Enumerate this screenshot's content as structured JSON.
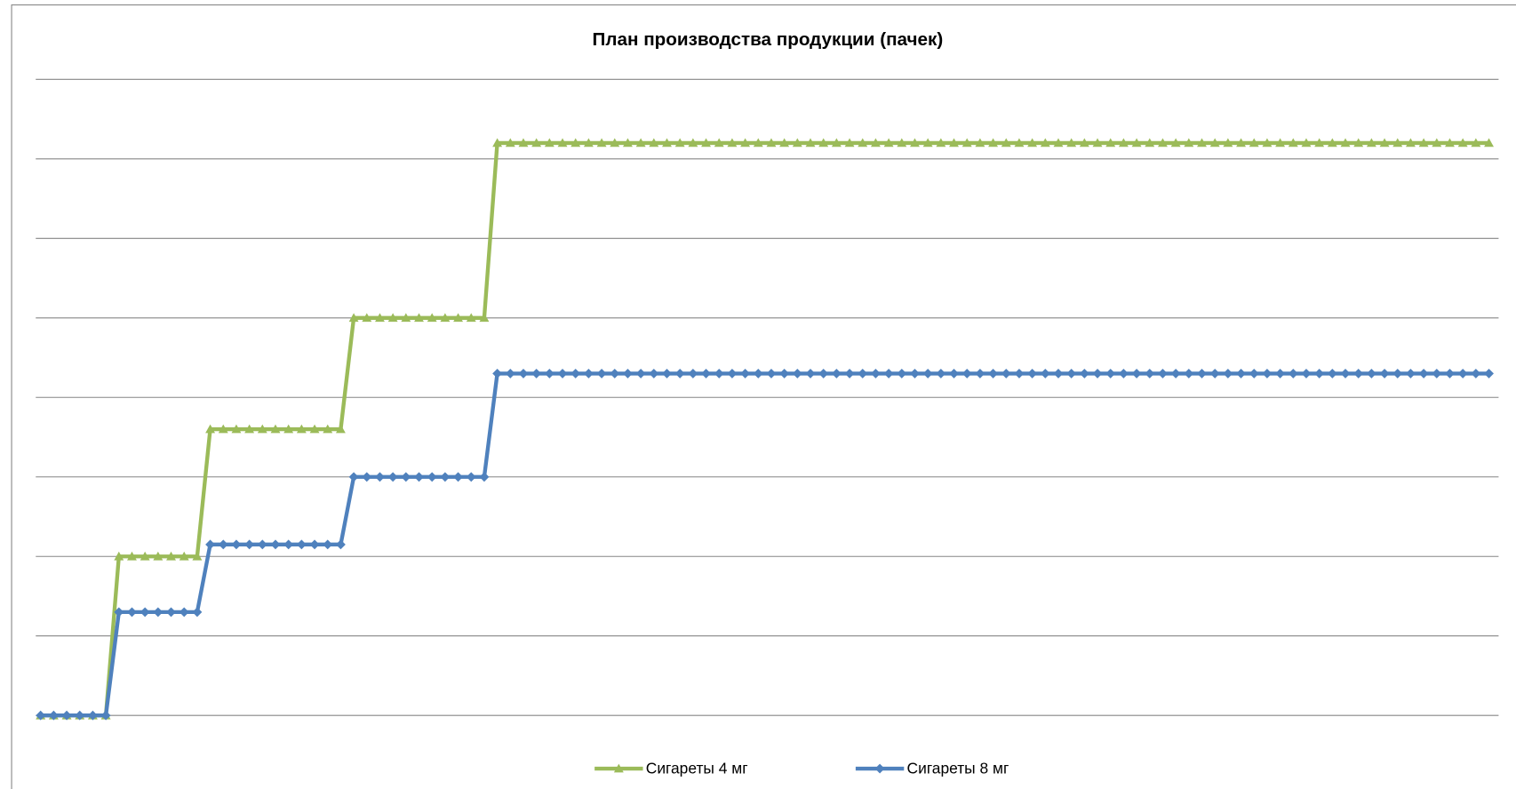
{
  "chart_data": {
    "type": "line",
    "title": "План производства продукции (пачек)",
    "categories": [
      null,
      null,
      null,
      null,
      null,
      null,
      null,
      null,
      null,
      null,
      null,
      null,
      null,
      null,
      null,
      null,
      null,
      null,
      null,
      null,
      null,
      null,
      null,
      null,
      null,
      null,
      null,
      null,
      null,
      null,
      null,
      null,
      null,
      null,
      null,
      null,
      null,
      null,
      null,
      null,
      null,
      null,
      null,
      null,
      null,
      null,
      null,
      null,
      null,
      null,
      null,
      null,
      null,
      null,
      null,
      null,
      null,
      null,
      null,
      null,
      null,
      null,
      null,
      null,
      null,
      null,
      null,
      null,
      null,
      null,
      null,
      null,
      null,
      null,
      null,
      null,
      null,
      null,
      null,
      null,
      null,
      null,
      null,
      null,
      null,
      null,
      null,
      null,
      null,
      null,
      null,
      null,
      null,
      null,
      null,
      null,
      null,
      null,
      null,
      null,
      null,
      null,
      null,
      null,
      null,
      null,
      null,
      null,
      null,
      null,
      null,
      null
    ],
    "series": [
      {
        "name": "Сигареты 4 мг",
        "color": "#9bbb59",
        "marker": "triangle",
        "values": [
          0,
          0,
          0,
          0,
          0,
          0,
          2,
          2,
          2,
          2,
          2,
          2,
          2,
          3.6,
          3.6,
          3.6,
          3.6,
          3.6,
          3.6,
          3.6,
          3.6,
          3.6,
          3.6,
          3.6,
          5,
          5,
          5,
          5,
          5,
          5,
          5,
          5,
          5,
          5,
          5,
          7.2,
          7.2,
          7.2,
          7.2,
          7.2,
          7.2,
          7.2,
          7.2,
          7.2,
          7.2,
          7.2,
          7.2,
          7.2,
          7.2,
          7.2,
          7.2,
          7.2,
          7.2,
          7.2,
          7.2,
          7.2,
          7.2,
          7.2,
          7.2,
          7.2,
          7.2,
          7.2,
          7.2,
          7.2,
          7.2,
          7.2,
          7.2,
          7.2,
          7.2,
          7.2,
          7.2,
          7.2,
          7.2,
          7.2,
          7.2,
          7.2,
          7.2,
          7.2,
          7.2,
          7.2,
          7.2,
          7.2,
          7.2,
          7.2,
          7.2,
          7.2,
          7.2,
          7.2,
          7.2,
          7.2,
          7.2,
          7.2,
          7.2,
          7.2,
          7.2,
          7.2,
          7.2,
          7.2,
          7.2,
          7.2,
          7.2,
          7.2,
          7.2,
          7.2,
          7.2,
          7.2,
          7.2,
          7.2,
          7.2,
          7.2,
          7.2,
          7.2
        ]
      },
      {
        "name": "Сигареты 8 мг",
        "color": "#4f81bd",
        "marker": "diamond",
        "values": [
          0,
          0,
          0,
          0,
          0,
          0,
          1.3,
          1.3,
          1.3,
          1.3,
          1.3,
          1.3,
          1.3,
          2.15,
          2.15,
          2.15,
          2.15,
          2.15,
          2.15,
          2.15,
          2.15,
          2.15,
          2.15,
          2.15,
          3,
          3,
          3,
          3,
          3,
          3,
          3,
          3,
          3,
          3,
          3,
          4.3,
          4.3,
          4.3,
          4.3,
          4.3,
          4.3,
          4.3,
          4.3,
          4.3,
          4.3,
          4.3,
          4.3,
          4.3,
          4.3,
          4.3,
          4.3,
          4.3,
          4.3,
          4.3,
          4.3,
          4.3,
          4.3,
          4.3,
          4.3,
          4.3,
          4.3,
          4.3,
          4.3,
          4.3,
          4.3,
          4.3,
          4.3,
          4.3,
          4.3,
          4.3,
          4.3,
          4.3,
          4.3,
          4.3,
          4.3,
          4.3,
          4.3,
          4.3,
          4.3,
          4.3,
          4.3,
          4.3,
          4.3,
          4.3,
          4.3,
          4.3,
          4.3,
          4.3,
          4.3,
          4.3,
          4.3,
          4.3,
          4.3,
          4.3,
          4.3,
          4.3,
          4.3,
          4.3,
          4.3,
          4.3,
          4.3,
          4.3,
          4.3,
          4.3,
          4.3,
          4.3,
          4.3,
          4.3,
          4.3,
          4.3,
          4.3,
          4.3
        ]
      }
    ],
    "ylim": [
      0,
      8
    ],
    "yticks": [
      0,
      1,
      2,
      3,
      4,
      5,
      6,
      7,
      8
    ],
    "grid": true,
    "legend": "bottom"
  }
}
